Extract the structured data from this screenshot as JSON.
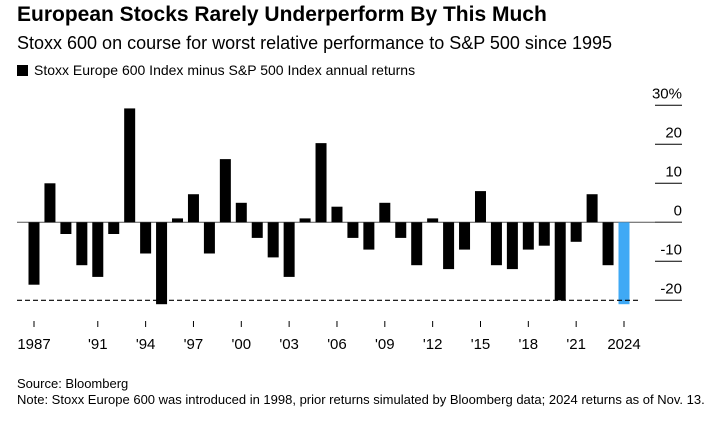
{
  "chart_data": {
    "type": "bar",
    "title": "European Stocks Rarely Underperform By This Much",
    "subtitle": "Stoxx 600 on course for worst relative performance to S&P 500 since 1995",
    "legend": [
      "Stoxx Europe 600 Index minus S&P 500 Index annual returns"
    ],
    "categories": [
      1987,
      1988,
      1989,
      1990,
      1991,
      1992,
      1993,
      1994,
      1995,
      1996,
      1997,
      1998,
      1999,
      2000,
      2001,
      2002,
      2003,
      2004,
      2005,
      2006,
      2007,
      2008,
      2009,
      2010,
      2011,
      2012,
      2013,
      2014,
      2015,
      2016,
      2017,
      2018,
      2019,
      2020,
      2021,
      2022,
      2023,
      2024
    ],
    "values": [
      -16,
      10,
      -3,
      -11,
      -14,
      -3,
      29.2,
      -8,
      -21,
      1,
      7.2,
      -8,
      16.2,
      5,
      -4,
      -9,
      -14,
      1,
      20.3,
      4,
      -4,
      -7,
      5,
      -4,
      -11,
      1,
      -12,
      -7,
      8,
      -11,
      -12,
      -7,
      -6,
      -20,
      -5,
      7.2,
      -11,
      -21
    ],
    "highlight": {
      "category": 2024,
      "color": "#3fa9f5"
    },
    "bar_color": "#000000",
    "reference_line": -20,
    "ylim": [
      -23,
      30
    ],
    "yticks": [
      30,
      20,
      10,
      0,
      -10,
      -20
    ],
    "ytick_labels": [
      "30%",
      "20",
      "10",
      "0",
      "-10",
      "-20"
    ],
    "xticks": [
      1987,
      1991,
      1994,
      1997,
      2000,
      2003,
      2006,
      2009,
      2012,
      2015,
      2018,
      2021,
      2024
    ],
    "xtick_labels": [
      "1987",
      "'91",
      "'94",
      "'97",
      "'00",
      "'03",
      "'06",
      "'09",
      "'12",
      "'15",
      "'18",
      "'21",
      "2024"
    ]
  },
  "footer": {
    "source": "Source: Bloomberg",
    "note": "Note: Stoxx Europe 600 was introduced in 1998, prior returns simulated by Bloomberg data; 2024 returns as of Nov. 13."
  }
}
